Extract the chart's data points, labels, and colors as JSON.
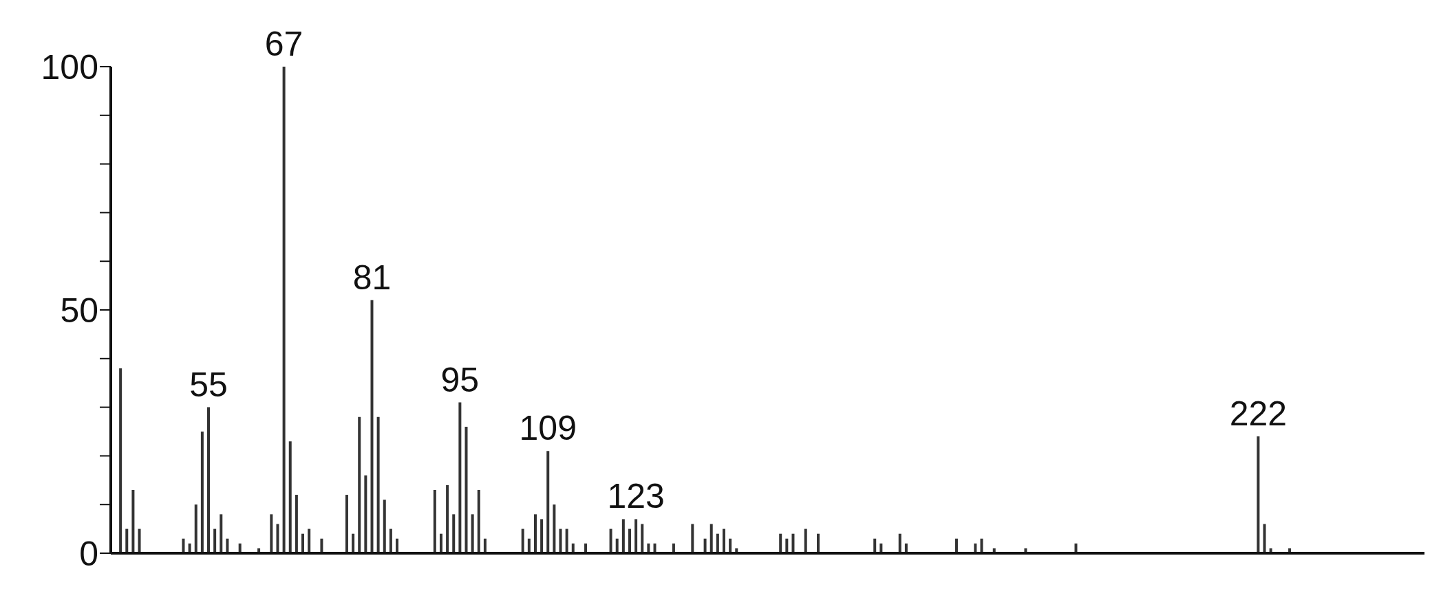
{
  "chart_data": {
    "type": "bar",
    "color": "#333333",
    "tick_labels": "y",
    "ylim": [
      0,
      100
    ],
    "yticks": [
      0,
      {
        "value": 10,
        "label": null
      },
      {
        "value": 20,
        "label": null
      },
      {
        "value": 30,
        "label": null
      },
      {
        "value": 40,
        "label": null
      },
      50,
      {
        "value": 60,
        "label": null
      },
      {
        "value": 70,
        "label": null
      },
      {
        "value": 80,
        "label": null
      },
      {
        "value": 90,
        "label": null
      },
      100
    ],
    "categories": [
      null,
      null,
      null,
      null,
      null,
      null,
      null,
      null,
      null,
      null,
      null,
      null,
      null,
      null,
      null,
      "55",
      null,
      null,
      null,
      null,
      null,
      null,
      null,
      null,
      null,
      null,
      null,
      "67",
      null,
      null,
      null,
      null,
      null,
      null,
      null,
      null,
      null,
      null,
      null,
      null,
      null,
      "81",
      null,
      null,
      null,
      null,
      null,
      null,
      null,
      null,
      null,
      null,
      null,
      null,
      null,
      "95",
      null,
      null,
      null,
      null,
      null,
      null,
      null,
      null,
      null,
      null,
      null,
      null,
      null,
      "109",
      null,
      null,
      null,
      null,
      null,
      null,
      null,
      null,
      null,
      null,
      null,
      null,
      null,
      "123",
      null,
      null,
      null,
      null,
      null,
      null,
      null,
      null,
      null,
      null,
      null,
      null,
      null,
      null,
      null,
      null,
      null,
      null,
      null,
      null,
      null,
      null,
      null,
      null,
      null,
      null,
      null,
      null,
      null,
      null,
      null,
      null,
      null,
      null,
      null,
      null,
      null,
      null,
      null,
      null,
      null,
      null,
      null,
      null,
      null,
      null,
      null,
      null,
      null,
      null,
      null,
      null,
      null,
      null,
      null,
      null,
      null,
      null,
      null,
      null,
      null,
      null,
      null,
      null,
      null,
      null,
      null,
      null,
      null,
      null,
      null,
      null,
      null,
      null,
      null,
      null,
      null,
      null,
      null,
      null,
      null,
      null,
      null,
      null,
      null,
      null,
      null,
      null,
      null,
      null,
      null,
      null,
      null,
      null,
      null,
      null,
      null,
      null,
      "222",
      null,
      null,
      null,
      null,
      null,
      null,
      null,
      null,
      null,
      null,
      null,
      null,
      null,
      null,
      null,
      null,
      null,
      null,
      null,
      null,
      null,
      null,
      null,
      null,
      null,
      null
    ],
    "values": [
      null,
      38,
      5,
      13,
      5,
      null,
      null,
      null,
      null,
      null,
      null,
      3,
      2,
      10,
      25,
      30,
      5,
      8,
      3,
      null,
      2,
      null,
      null,
      1,
      null,
      8,
      6,
      100,
      23,
      12,
      4,
      5,
      null,
      3,
      null,
      null,
      null,
      12,
      4,
      28,
      16,
      52,
      28,
      11,
      5,
      3,
      null,
      null,
      null,
      null,
      null,
      13,
      4,
      14,
      8,
      31,
      26,
      8,
      13,
      3,
      null,
      null,
      null,
      null,
      null,
      5,
      3,
      8,
      7,
      21,
      10,
      5,
      5,
      2,
      null,
      2,
      null,
      null,
      null,
      5,
      3,
      7,
      5,
      7,
      6,
      2,
      2,
      null,
      null,
      2,
      null,
      null,
      6,
      null,
      3,
      6,
      4,
      5,
      3,
      1,
      null,
      null,
      null,
      null,
      null,
      null,
      4,
      3,
      4,
      null,
      5,
      null,
      4,
      null,
      null,
      null,
      null,
      null,
      null,
      null,
      null,
      3,
      2,
      null,
      null,
      4,
      2,
      null,
      null,
      null,
      null,
      null,
      null,
      null,
      3,
      null,
      null,
      2,
      3,
      null,
      1,
      null,
      null,
      null,
      null,
      1,
      null,
      null,
      null,
      null,
      null,
      null,
      null,
      2,
      null,
      null,
      null,
      null,
      null,
      null,
      null,
      null,
      null,
      null,
      null,
      null,
      null,
      null,
      null,
      null,
      null,
      null,
      null,
      null,
      null,
      null,
      null,
      null,
      null,
      null,
      null,
      null,
      24,
      6,
      1,
      null,
      null,
      1,
      null,
      null,
      null,
      null,
      null,
      null,
      null,
      null,
      null,
      null,
      null,
      null,
      null,
      null,
      null,
      null,
      null,
      null,
      null,
      null,
      null
    ]
  }
}
